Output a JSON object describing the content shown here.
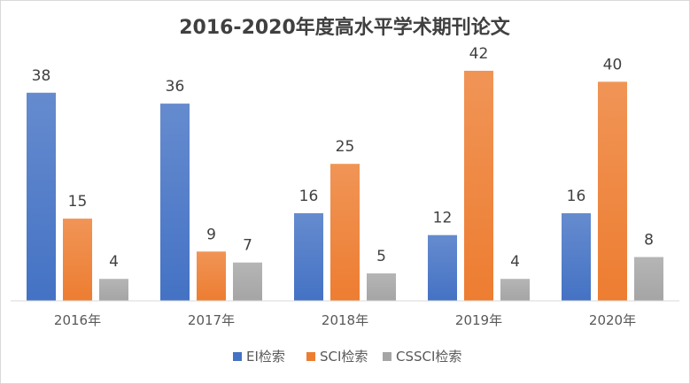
{
  "chart_data": {
    "type": "bar",
    "title": "2016-2020年度高水平学术期刊论文",
    "categories": [
      "2016年",
      "2017年",
      "2018年",
      "2019年",
      "2020年"
    ],
    "series": [
      {
        "name": "EI检索",
        "values": [
          38,
          36,
          16,
          12,
          16
        ],
        "color": "#4472c4"
      },
      {
        "name": "SCI检索",
        "values": [
          15,
          9,
          25,
          42,
          40
        ],
        "color": "#ed7d31"
      },
      {
        "name": "CSSCI检索",
        "values": [
          4,
          7,
          5,
          4,
          8
        ],
        "color": "#a5a5a5"
      }
    ],
    "xlabel": "",
    "ylabel": "",
    "ylim": [
      0,
      45
    ],
    "grid": false,
    "legend": "bottom",
    "data_labels": true
  }
}
